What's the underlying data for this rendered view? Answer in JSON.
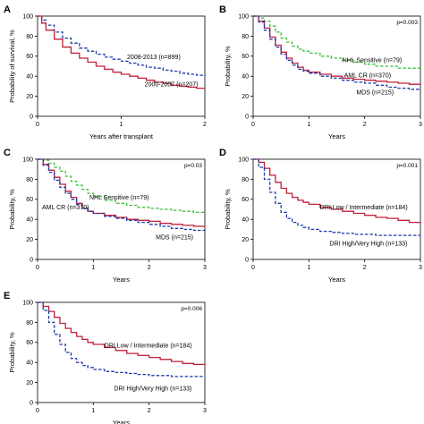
{
  "figure": {
    "colors": {
      "red": "#c0203a",
      "blue": "#1f3aa8",
      "green": "#3fc13f",
      "frame": "#000000"
    }
  },
  "chart_data": [
    {
      "panel": "A",
      "type": "line",
      "step": true,
      "xlabel": "Years after transplant",
      "ylabel": "Probability of survival, %",
      "xlim": [
        0,
        2
      ],
      "ylim": [
        0,
        100
      ],
      "xticks": [
        "0",
        "1",
        "2"
      ],
      "yticks": [
        "0",
        "20",
        "40",
        "60",
        "80",
        "100"
      ],
      "pvalue": "",
      "series": [
        {
          "name": "2008-2013 (n=899)",
          "color": "blue",
          "dash": true,
          "x": [
            0,
            0.05,
            0.1,
            0.2,
            0.3,
            0.4,
            0.5,
            0.6,
            0.7,
            0.8,
            0.9,
            1.0,
            1.1,
            1.2,
            1.3,
            1.4,
            1.5,
            1.6,
            1.7,
            1.8,
            1.9,
            2.0
          ],
          "y": [
            100,
            96,
            91,
            84,
            78,
            73,
            68,
            65,
            62,
            59,
            57,
            55,
            53,
            51,
            49,
            48,
            46,
            45,
            43,
            42,
            41,
            40
          ]
        },
        {
          "name": "2000-2007 (n=207)",
          "color": "red",
          "dash": false,
          "x": [
            0,
            0.05,
            0.1,
            0.2,
            0.3,
            0.4,
            0.5,
            0.6,
            0.7,
            0.8,
            0.9,
            1.0,
            1.1,
            1.2,
            1.3,
            1.4,
            1.5,
            1.6,
            1.7,
            1.8,
            1.9,
            2.0
          ],
          "y": [
            100,
            93,
            86,
            77,
            69,
            63,
            58,
            54,
            50,
            47,
            44,
            42,
            40,
            38,
            36,
            34,
            33,
            31,
            30,
            29,
            28,
            28
          ]
        }
      ],
      "labels": [
        {
          "series": 0,
          "text": "2008-2013 (n=899)",
          "x": 1.07,
          "y": 57
        },
        {
          "series": 1,
          "text": "2000-2007 (n=207)",
          "x": 1.28,
          "y": 30
        }
      ]
    },
    {
      "panel": "B",
      "type": "line",
      "step": true,
      "xlabel": "Years",
      "ylabel": "Probability, %",
      "xlim": [
        0,
        3
      ],
      "ylim": [
        0,
        100
      ],
      "xticks": [
        "0",
        "1",
        "2",
        "3"
      ],
      "yticks": [
        "0",
        "20",
        "40",
        "60",
        "80",
        "100"
      ],
      "pvalue": "p=0.003",
      "series": [
        {
          "name": "NHL Sensitive (n=79)",
          "color": "green",
          "dash": true,
          "x": [
            0,
            0.1,
            0.2,
            0.3,
            0.4,
            0.5,
            0.6,
            0.7,
            0.8,
            0.9,
            1.0,
            1.2,
            1.4,
            1.6,
            1.8,
            2.0,
            2.2,
            2.4,
            2.6,
            2.8,
            3.0
          ],
          "y": [
            100,
            98,
            95,
            90,
            84,
            78,
            74,
            70,
            67,
            65,
            63,
            60,
            58,
            56,
            54,
            52,
            50,
            50,
            48,
            48,
            48
          ]
        },
        {
          "name": "AML CR (n=370)",
          "color": "red",
          "dash": false,
          "x": [
            0,
            0.1,
            0.2,
            0.3,
            0.4,
            0.5,
            0.6,
            0.7,
            0.8,
            0.9,
            1.0,
            1.2,
            1.4,
            1.6,
            1.8,
            2.0,
            2.2,
            2.4,
            2.6,
            2.8,
            3.0
          ],
          "y": [
            100,
            95,
            88,
            79,
            71,
            64,
            58,
            53,
            49,
            46,
            44,
            42,
            40,
            38,
            37,
            36,
            35,
            34,
            33,
            32,
            32
          ]
        },
        {
          "name": "MDS (n=215)",
          "color": "blue",
          "dash": true,
          "x": [
            0,
            0.1,
            0.2,
            0.3,
            0.4,
            0.5,
            0.6,
            0.7,
            0.8,
            0.9,
            1.0,
            1.2,
            1.4,
            1.6,
            1.8,
            2.0,
            2.2,
            2.4,
            2.6,
            2.8,
            3.0
          ],
          "y": [
            100,
            94,
            86,
            77,
            69,
            62,
            56,
            51,
            47,
            45,
            43,
            40,
            38,
            36,
            34,
            33,
            31,
            29,
            28,
            27,
            26
          ]
        }
      ],
      "labels": [
        {
          "series": 0,
          "text": "NHL Sensitive (n=79)",
          "x": 1.6,
          "y": 54
        },
        {
          "series": 1,
          "text": "AML CR (n=370)",
          "x": 1.63,
          "y": 39
        },
        {
          "series": 2,
          "text": "MDS (n=215)",
          "x": 1.85,
          "y": 22
        }
      ]
    },
    {
      "panel": "C",
      "type": "line",
      "step": true,
      "xlabel": "Years",
      "ylabel": "Probability, %",
      "xlim": [
        0,
        3
      ],
      "ylim": [
        0,
        100
      ],
      "xticks": [
        "0",
        "1",
        "2",
        "3"
      ],
      "yticks": [
        "0",
        "20",
        "40",
        "60",
        "80",
        "100"
      ],
      "pvalue": "p=0.03",
      "series": [
        {
          "name": "NHL Sensitive (n=79)",
          "color": "green",
          "dash": true,
          "x": [
            0,
            0.1,
            0.2,
            0.3,
            0.4,
            0.5,
            0.6,
            0.7,
            0.8,
            0.9,
            1.0,
            1.2,
            1.4,
            1.6,
            1.8,
            2.0,
            2.2,
            2.4,
            2.6,
            2.8,
            3.0
          ],
          "y": [
            100,
            99,
            96,
            92,
            88,
            83,
            78,
            74,
            70,
            66,
            63,
            59,
            56,
            54,
            52,
            51,
            50,
            49,
            48,
            47,
            46
          ]
        },
        {
          "name": "AML CR (n=370)",
          "color": "red",
          "dash": false,
          "x": [
            0,
            0.1,
            0.2,
            0.3,
            0.4,
            0.5,
            0.6,
            0.7,
            0.8,
            0.9,
            1.0,
            1.2,
            1.4,
            1.6,
            1.8,
            2.0,
            2.2,
            2.4,
            2.6,
            2.8,
            3.0
          ],
          "y": [
            100,
            95,
            89,
            82,
            75,
            68,
            62,
            56,
            51,
            48,
            46,
            44,
            42,
            40,
            39,
            38,
            36,
            35,
            34,
            33,
            32
          ]
        },
        {
          "name": "MDS (n=215)",
          "color": "blue",
          "dash": true,
          "x": [
            0,
            0.1,
            0.2,
            0.3,
            0.4,
            0.5,
            0.6,
            0.7,
            0.8,
            0.9,
            1.0,
            1.2,
            1.4,
            1.6,
            1.8,
            2.0,
            2.2,
            2.4,
            2.6,
            2.8,
            3.0
          ],
          "y": [
            100,
            94,
            87,
            79,
            72,
            66,
            60,
            55,
            51,
            48,
            46,
            43,
            41,
            39,
            37,
            35,
            33,
            31,
            30,
            29,
            28
          ]
        }
      ],
      "labels": [
        {
          "series": 0,
          "text": "NHL Sensitive (n=79)",
          "x": 0.93,
          "y": 60
        },
        {
          "series": 1,
          "text": "AML CR (n=370)",
          "x": 0.08,
          "y": 50
        },
        {
          "series": 2,
          "text": "MDS (n=215)",
          "x": 2.12,
          "y": 20
        }
      ]
    },
    {
      "panel": "D",
      "type": "line",
      "step": true,
      "xlabel": "Years",
      "ylabel": "Probability, %",
      "xlim": [
        0,
        3
      ],
      "ylim": [
        0,
        100
      ],
      "xticks": [
        "0",
        "1",
        "2",
        "3"
      ],
      "yticks": [
        "0",
        "20",
        "40",
        "60",
        "80",
        "100"
      ],
      "pvalue": "p=0.001",
      "series": [
        {
          "name": "DRI Low / Intermediate (n=184)",
          "color": "red",
          "dash": false,
          "x": [
            0,
            0.1,
            0.2,
            0.3,
            0.4,
            0.5,
            0.6,
            0.7,
            0.8,
            0.9,
            1.0,
            1.2,
            1.4,
            1.6,
            1.8,
            2.0,
            2.2,
            2.4,
            2.6,
            2.8,
            3.0
          ],
          "y": [
            100,
            97,
            91,
            84,
            77,
            71,
            66,
            62,
            59,
            57,
            55,
            52,
            50,
            48,
            46,
            44,
            42,
            41,
            39,
            37,
            35
          ]
        },
        {
          "name": "DRI High/Very High (n=133)",
          "color": "blue",
          "dash": true,
          "x": [
            0,
            0.1,
            0.2,
            0.3,
            0.4,
            0.5,
            0.6,
            0.7,
            0.8,
            0.9,
            1.0,
            1.2,
            1.4,
            1.6,
            1.8,
            2.0,
            2.2,
            2.4,
            2.6,
            2.8,
            3.0
          ],
          "y": [
            100,
            92,
            80,
            67,
            56,
            47,
            41,
            37,
            34,
            32,
            30,
            28,
            27,
            26,
            25,
            25,
            24,
            24,
            24,
            24,
            24
          ]
        }
      ],
      "labels": [
        {
          "series": 0,
          "text": "DRI Low / Intermediate (n=184)",
          "x": 1.2,
          "y": 50
        },
        {
          "series": 1,
          "text": "DRI High/Very High (n=133)",
          "x": 1.37,
          "y": 14
        }
      ]
    },
    {
      "panel": "E",
      "type": "line",
      "step": true,
      "xlabel": "Years",
      "ylabel": "Probability, %",
      "xlim": [
        0,
        3
      ],
      "ylim": [
        0,
        100
      ],
      "xticks": [
        "0",
        "1",
        "2",
        "3"
      ],
      "yticks": [
        "0",
        "20",
        "40",
        "60",
        "80",
        "100"
      ],
      "pvalue": "p=0.006",
      "series": [
        {
          "name": "DRI Low / Intermediate (n=184)",
          "color": "red",
          "dash": false,
          "x": [
            0,
            0.1,
            0.2,
            0.3,
            0.4,
            0.5,
            0.6,
            0.7,
            0.8,
            0.9,
            1.0,
            1.2,
            1.4,
            1.6,
            1.8,
            2.0,
            2.2,
            2.4,
            2.6,
            2.8,
            3.0
          ],
          "y": [
            100,
            96,
            91,
            85,
            79,
            74,
            70,
            66,
            63,
            60,
            58,
            55,
            52,
            49,
            47,
            45,
            43,
            41,
            39,
            38,
            37
          ]
        },
        {
          "name": "DRI High/Very High (n=133)",
          "color": "blue",
          "dash": true,
          "x": [
            0,
            0.1,
            0.2,
            0.3,
            0.4,
            0.5,
            0.6,
            0.7,
            0.8,
            0.9,
            1.0,
            1.2,
            1.4,
            1.6,
            1.8,
            2.0,
            2.2,
            2.4,
            2.6,
            2.8,
            3.0
          ],
          "y": [
            100,
            92,
            80,
            68,
            58,
            50,
            44,
            40,
            37,
            35,
            33,
            31,
            30,
            29,
            28,
            27,
            27,
            26,
            26,
            26,
            26
          ]
        }
      ],
      "labels": [
        {
          "series": 0,
          "text": "DRI Low / Intermediate (n=184)",
          "x": 1.2,
          "y": 55
        },
        {
          "series": 1,
          "text": "DRI High/Very High (n=133)",
          "x": 1.37,
          "y": 12
        }
      ]
    }
  ]
}
